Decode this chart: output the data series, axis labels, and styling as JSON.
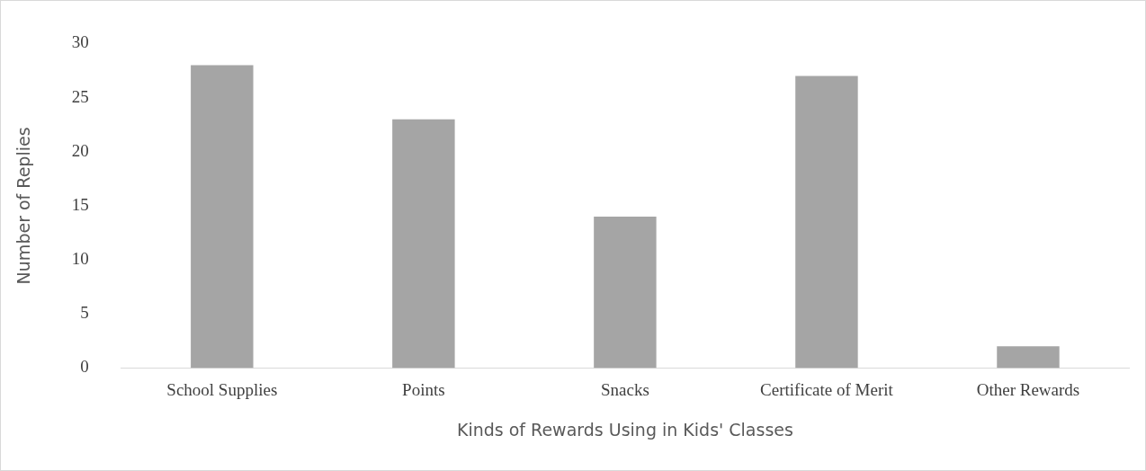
{
  "chart_data": {
    "type": "bar",
    "xlabel": "Kinds of Rewards Using in Kids' Classes",
    "ylabel": "Number of Replies",
    "categories": [
      "School Supplies",
      "Points",
      "Snacks",
      "Certificate of Merit",
      "Other Rewards"
    ],
    "values": [
      28,
      23,
      14,
      27,
      2
    ],
    "color": "#a5a5a5",
    "ylim": [
      0,
      30
    ],
    "yticks": [
      0,
      5,
      10,
      15,
      20,
      25,
      30
    ],
    "grid": false,
    "legend": false
  }
}
